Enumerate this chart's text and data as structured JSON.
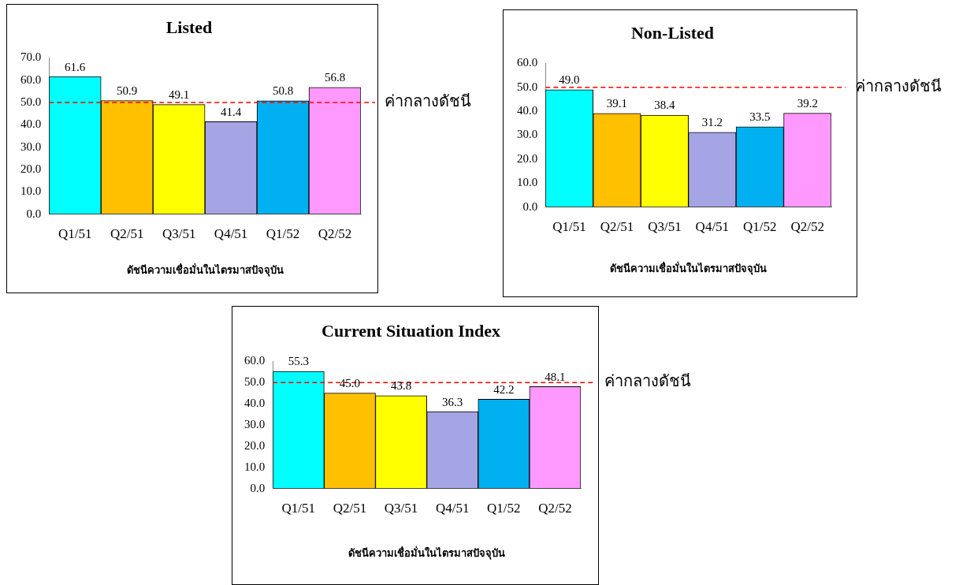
{
  "chart_data": [
    {
      "type": "bar",
      "title": "Listed",
      "xlabel": "ดัชนีความเชื่อมั่นในไตรมาสปัจจุบัน",
      "categories": [
        "Q1/51",
        "Q2/51",
        "Q3/51",
        "Q4/51",
        "Q1/52",
        "Q2/52"
      ],
      "values": [
        61.6,
        50.9,
        49.1,
        41.4,
        50.8,
        56.8
      ],
      "colors": [
        "#00ffff",
        "#ffc000",
        "#ffff00",
        "#a5a5e6",
        "#00b0f0",
        "#ff99ff"
      ],
      "ylim": [
        0,
        70
      ],
      "yticks": [
        {
          "value": 0,
          "label": "0.0"
        },
        {
          "value": 10,
          "label": "10.0"
        },
        {
          "value": 20,
          "label": "20.0"
        },
        {
          "value": 30,
          "label": "30.0"
        },
        {
          "value": 40,
          "label": "40.0"
        },
        {
          "value": 50,
          "label": "50.0"
        },
        {
          "value": 60,
          "label": "60.0"
        },
        {
          "value": 70,
          "label": "70.0"
        }
      ],
      "data_labels": true,
      "grid": false,
      "legend": false,
      "ref_lines": [
        {
          "axis": "y",
          "value": 50,
          "label": "ค่ากลางดัชนี",
          "color": "#ff0000",
          "line_style": "dashed"
        }
      ]
    },
    {
      "type": "bar",
      "title": "Non-Listed",
      "xlabel": "ดัชนีความเชื่อมั่นในไตรมาสปัจจุบัน",
      "categories": [
        "Q1/51",
        "Q2/51",
        "Q3/51",
        "Q4/51",
        "Q1/52",
        "Q2/52"
      ],
      "values": [
        49.0,
        39.1,
        38.4,
        31.2,
        33.5,
        39.2
      ],
      "colors": [
        "#00ffff",
        "#ffc000",
        "#ffff00",
        "#a5a5e6",
        "#00b0f0",
        "#ff99ff"
      ],
      "ylim": [
        0,
        60
      ],
      "yticks": [
        {
          "value": 0,
          "label": "0.0"
        },
        {
          "value": 10,
          "label": "10.0"
        },
        {
          "value": 20,
          "label": "20.0"
        },
        {
          "value": 30,
          "label": "30.0"
        },
        {
          "value": 40,
          "label": "40.0"
        },
        {
          "value": 50,
          "label": "50.0"
        },
        {
          "value": 60,
          "label": "60.0"
        }
      ],
      "value_labels": [
        "49.0",
        "39.1",
        "38.4",
        "31.2",
        "33.5",
        "39.2"
      ],
      "grid": false,
      "legend": false,
      "ref_lines": [
        {
          "axis": "y",
          "value": 50,
          "label": "ค่ากลางดัชนี",
          "color": "#ff0000",
          "line_style": "dashed"
        }
      ]
    },
    {
      "type": "bar",
      "title": "Current Situation Index",
      "xlabel": "ดัชนีความเชื่อมั่นในไตรมาสปัจจุบัน",
      "categories": [
        "Q1/51",
        "Q2/51",
        "Q3/51",
        "Q4/51",
        "Q1/52",
        "Q2/52"
      ],
      "values": [
        55.3,
        45.0,
        43.8,
        36.3,
        42.2,
        48.1
      ],
      "colors": [
        "#00ffff",
        "#ffc000",
        "#ffff00",
        "#a5a5e6",
        "#00b0f0",
        "#ff99ff"
      ],
      "ylim": [
        0,
        60
      ],
      "yticks": [
        {
          "value": 0,
          "label": "0.0"
        },
        {
          "value": 10,
          "label": "10.0"
        },
        {
          "value": 20,
          "label": "20.0"
        },
        {
          "value": 30,
          "label": "30.0"
        },
        {
          "value": 40,
          "label": "40.0"
        },
        {
          "value": 50,
          "label": "50.0"
        },
        {
          "value": 60,
          "label": "60.0"
        }
      ],
      "value_labels": [
        "55.3",
        "45.0",
        "43.8",
        "36.3",
        "42.2",
        "48.1"
      ],
      "grid": false,
      "legend": false,
      "ref_lines": [
        {
          "axis": "y",
          "value": 50,
          "label": "ค่ากลางดัชนี",
          "color": "#ff0000",
          "line_style": "dashed"
        }
      ]
    }
  ]
}
